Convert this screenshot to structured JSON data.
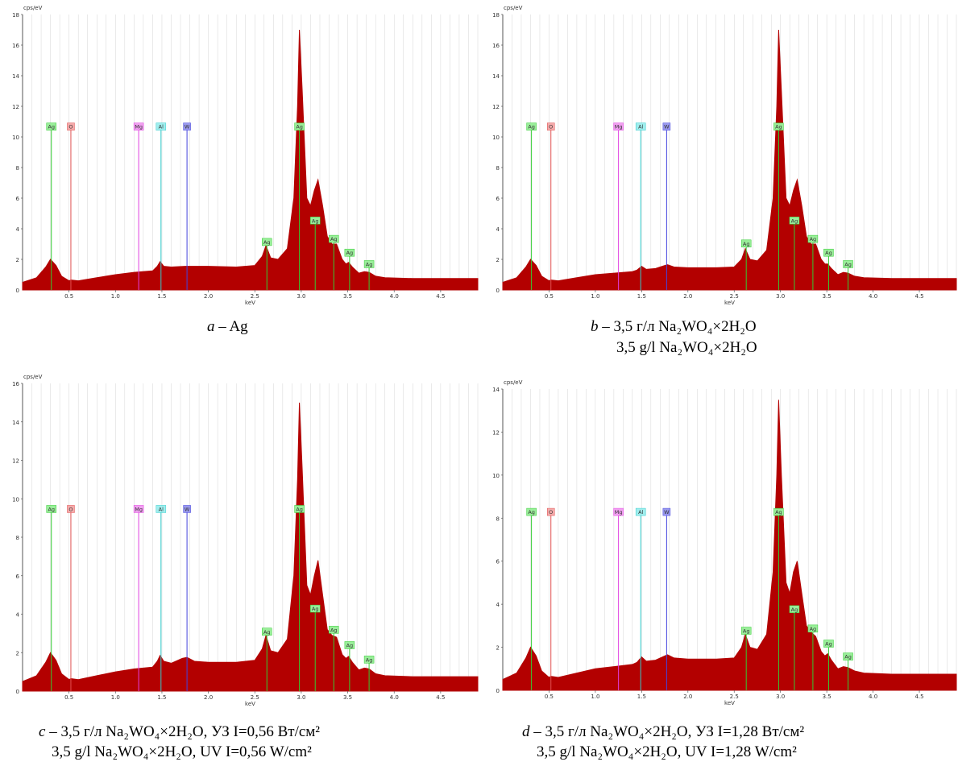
{
  "colors": {
    "fill": "#b30000",
    "grid": "#d6d6d6",
    "axis": "#555555"
  },
  "element_colors": {
    "Ag": "#33cc33",
    "O": "#e05050",
    "Mg": "#e040e0",
    "Al": "#33cccc",
    "W": "#4444dd"
  },
  "element_label_bg": {
    "Ag": "#99ee99",
    "O": "#f4aaaa",
    "Mg": "#f1a0f1",
    "Al": "#a0eeee",
    "W": "#9999ee"
  },
  "panels": [
    {
      "caption": {
        "prefix": "a",
        "line1": " – Ag",
        "line2": ""
      },
      "chart_data": {
        "type": "area",
        "ylabel": "cps/eV",
        "xlabel": "keV",
        "xlim": [
          0.0,
          4.9
        ],
        "ylim": [
          0,
          18
        ],
        "xticks": [
          0.5,
          1.0,
          1.5,
          2.0,
          2.5,
          3.0,
          3.5,
          4.0,
          4.5
        ],
        "xtick_labels": [
          "0.5",
          "1.0",
          "1.5",
          "2.0",
          "2.5",
          "3.0",
          "3.5",
          "4.0",
          "4.5"
        ],
        "yticks": [
          2,
          4,
          6,
          8,
          10,
          12,
          14,
          16,
          18
        ],
        "ytick_labels": [
          "2",
          "4",
          "6",
          "8",
          "10",
          "12",
          "14",
          "16",
          "18"
        ],
        "y_zero_label": "0",
        "x": [
          0.0,
          0.15,
          0.25,
          0.3,
          0.36,
          0.42,
          0.5,
          0.52,
          0.6,
          0.8,
          1.0,
          1.2,
          1.4,
          1.45,
          1.48,
          1.52,
          1.6,
          1.75,
          1.78,
          1.85,
          2.0,
          2.3,
          2.5,
          2.58,
          2.62,
          2.67,
          2.75,
          2.85,
          2.92,
          2.96,
          2.98,
          3.01,
          3.06,
          3.1,
          3.14,
          3.18,
          3.23,
          3.28,
          3.33,
          3.38,
          3.44,
          3.48,
          3.51,
          3.55,
          3.62,
          3.68,
          3.73,
          3.8,
          3.9,
          4.2,
          4.9
        ],
        "y": [
          0.5,
          0.8,
          1.5,
          2.0,
          1.6,
          0.9,
          0.6,
          0.65,
          0.6,
          0.8,
          1.0,
          1.15,
          1.25,
          1.55,
          1.85,
          1.55,
          1.5,
          1.55,
          1.55,
          1.55,
          1.55,
          1.5,
          1.6,
          2.2,
          2.9,
          2.1,
          2.0,
          2.7,
          6.0,
          12.0,
          17.0,
          13.0,
          6.0,
          5.5,
          6.5,
          7.2,
          5.5,
          3.5,
          3.0,
          3.0,
          2.0,
          1.7,
          1.8,
          1.5,
          1.1,
          1.2,
          1.15,
          0.9,
          0.8,
          0.75,
          0.75
        ]
      },
      "peaks": [
        {
          "el": "Ag",
          "x": 0.31,
          "tall": true
        },
        {
          "el": "O",
          "x": 0.52,
          "tall": true
        },
        {
          "el": "Mg",
          "x": 1.25,
          "tall": true
        },
        {
          "el": "Al",
          "x": 1.49,
          "tall": true
        },
        {
          "el": "W",
          "x": 1.77,
          "tall": true
        },
        {
          "el": "Ag",
          "x": 2.63,
          "tall": false,
          "label_y": 2.9
        },
        {
          "el": "Ag",
          "x": 2.98,
          "tall": true
        },
        {
          "el": "Ag",
          "x": 3.15,
          "tall": false,
          "label_y": 4.3
        },
        {
          "el": "Ag",
          "x": 3.35,
          "tall": false,
          "label_y": 3.1
        },
        {
          "el": "Ag",
          "x": 3.52,
          "tall": false,
          "label_y": 2.2
        },
        {
          "el": "Ag",
          "x": 3.73,
          "tall": false,
          "label_y": 1.45
        }
      ]
    },
    {
      "caption": {
        "prefix": "b",
        "line1": " – 3,5 г/л Na₂WO₄×2H₂O",
        "line2": "3,5 g/l Na₂WO₄×2H₂O"
      },
      "chart_data": {
        "type": "area",
        "ylabel": "cps/eV",
        "xlabel": "keV",
        "xlim": [
          0.0,
          4.9
        ],
        "ylim": [
          0,
          18
        ],
        "xticks": [
          0.5,
          1.0,
          1.5,
          2.0,
          2.5,
          3.0,
          3.5,
          4.0,
          4.5
        ],
        "xtick_labels": [
          "0.5",
          "1.0",
          "1.5",
          "2.0",
          "2.5",
          "3.0",
          "3.5",
          "4.0",
          "4.5"
        ],
        "yticks": [
          2,
          4,
          6,
          8,
          10,
          12,
          14,
          16,
          18
        ],
        "ytick_labels": [
          "2",
          "4",
          "6",
          "8",
          "10",
          "12",
          "14",
          "16",
          "18"
        ],
        "y_zero_label": "0",
        "x": [
          0.0,
          0.15,
          0.25,
          0.3,
          0.36,
          0.42,
          0.5,
          0.52,
          0.6,
          0.8,
          1.0,
          1.2,
          1.4,
          1.45,
          1.5,
          1.55,
          1.65,
          1.75,
          1.78,
          1.85,
          2.0,
          2.3,
          2.5,
          2.58,
          2.62,
          2.67,
          2.75,
          2.85,
          2.92,
          2.96,
          2.98,
          3.01,
          3.06,
          3.1,
          3.14,
          3.18,
          3.23,
          3.28,
          3.33,
          3.38,
          3.44,
          3.48,
          3.51,
          3.55,
          3.62,
          3.68,
          3.73,
          3.8,
          3.9,
          4.2,
          4.9
        ],
        "y": [
          0.5,
          0.8,
          1.5,
          2.0,
          1.6,
          0.9,
          0.6,
          0.65,
          0.6,
          0.8,
          1.0,
          1.1,
          1.2,
          1.3,
          1.55,
          1.35,
          1.4,
          1.6,
          1.65,
          1.5,
          1.45,
          1.45,
          1.5,
          2.0,
          2.7,
          2.0,
          1.9,
          2.6,
          6.0,
          12.0,
          17.0,
          13.0,
          6.0,
          5.5,
          6.5,
          7.2,
          5.5,
          3.5,
          3.0,
          3.0,
          2.0,
          1.7,
          1.7,
          1.4,
          1.0,
          1.15,
          1.1,
          0.9,
          0.8,
          0.75,
          0.75
        ]
      },
      "peaks": [
        {
          "el": "Ag",
          "x": 0.31,
          "tall": true
        },
        {
          "el": "O",
          "x": 0.52,
          "tall": true
        },
        {
          "el": "Mg",
          "x": 1.25,
          "tall": true
        },
        {
          "el": "Al",
          "x": 1.49,
          "tall": true
        },
        {
          "el": "W",
          "x": 1.77,
          "tall": true
        },
        {
          "el": "Ag",
          "x": 2.63,
          "tall": false,
          "label_y": 2.8
        },
        {
          "el": "Ag",
          "x": 2.98,
          "tall": true
        },
        {
          "el": "Ag",
          "x": 3.15,
          "tall": false,
          "label_y": 4.3
        },
        {
          "el": "Ag",
          "x": 3.35,
          "tall": false,
          "label_y": 3.1
        },
        {
          "el": "Ag",
          "x": 3.52,
          "tall": false,
          "label_y": 2.2
        },
        {
          "el": "Ag",
          "x": 3.73,
          "tall": false,
          "label_y": 1.45
        }
      ]
    },
    {
      "caption": {
        "prefix": "c",
        "line1": " – 3,5 г/л Na₂WO₄×2H₂O, УЗ I=0,56 Вт/см²",
        "line2": "3,5 g/l Na₂WO₄×2H₂O, UV I=0,56 W/cm²"
      },
      "chart_data": {
        "type": "area",
        "ylabel": "cps/eV",
        "xlabel": "keV",
        "xlim": [
          0.0,
          4.9
        ],
        "ylim": [
          0,
          16
        ],
        "xticks": [
          0.5,
          1.0,
          1.5,
          2.0,
          2.5,
          3.0,
          3.5,
          4.0,
          4.5
        ],
        "xtick_labels": [
          "0.5",
          "1.0",
          "1.5",
          "2.0",
          "2.5",
          "3.0",
          "3.5",
          "4.0",
          "4.5"
        ],
        "yticks": [
          2,
          4,
          6,
          8,
          10,
          12,
          14,
          16
        ],
        "ytick_labels": [
          "2",
          "4",
          "6",
          "8",
          "10",
          "12",
          "14",
          "16"
        ],
        "y_zero_label": "0",
        "x": [
          0.0,
          0.15,
          0.25,
          0.3,
          0.36,
          0.42,
          0.5,
          0.52,
          0.6,
          0.8,
          1.0,
          1.2,
          1.4,
          1.45,
          1.48,
          1.52,
          1.6,
          1.72,
          1.77,
          1.85,
          2.0,
          2.3,
          2.5,
          2.58,
          2.62,
          2.67,
          2.75,
          2.85,
          2.92,
          2.96,
          2.98,
          3.01,
          3.06,
          3.1,
          3.14,
          3.18,
          3.23,
          3.28,
          3.33,
          3.38,
          3.44,
          3.48,
          3.51,
          3.55,
          3.62,
          3.68,
          3.73,
          3.8,
          3.9,
          4.2,
          4.9
        ],
        "y": [
          0.5,
          0.8,
          1.5,
          2.0,
          1.6,
          0.9,
          0.6,
          0.65,
          0.6,
          0.8,
          1.0,
          1.15,
          1.25,
          1.55,
          1.85,
          1.55,
          1.45,
          1.7,
          1.75,
          1.55,
          1.5,
          1.5,
          1.6,
          2.2,
          2.9,
          2.1,
          2.0,
          2.7,
          6.0,
          11.0,
          15.0,
          11.5,
          5.5,
          5.0,
          6.0,
          6.8,
          5.0,
          3.2,
          2.9,
          2.8,
          1.9,
          1.7,
          1.8,
          1.5,
          1.1,
          1.2,
          1.15,
          0.9,
          0.8,
          0.75,
          0.75
        ]
      },
      "peaks": [
        {
          "el": "Ag",
          "x": 0.31,
          "tall": true
        },
        {
          "el": "O",
          "x": 0.52,
          "tall": true
        },
        {
          "el": "Mg",
          "x": 1.25,
          "tall": true
        },
        {
          "el": "Al",
          "x": 1.49,
          "tall": true
        },
        {
          "el": "W",
          "x": 1.77,
          "tall": true
        },
        {
          "el": "Ag",
          "x": 2.63,
          "tall": false,
          "label_y": 2.9
        },
        {
          "el": "Ag",
          "x": 2.98,
          "tall": true
        },
        {
          "el": "Ag",
          "x": 3.15,
          "tall": false,
          "label_y": 4.1
        },
        {
          "el": "Ag",
          "x": 3.35,
          "tall": false,
          "label_y": 3.0
        },
        {
          "el": "Ag",
          "x": 3.52,
          "tall": false,
          "label_y": 2.2
        },
        {
          "el": "Ag",
          "x": 3.73,
          "tall": false,
          "label_y": 1.45
        }
      ]
    },
    {
      "caption": {
        "prefix": "d",
        "line1": " – 3,5 г/л Na₂WO₄×2H₂O, УЗ I=1,28 Вт/см²",
        "line2": "3,5 g/l Na₂WO₄×2H₂O, UV I=1,28 W/cm²"
      },
      "chart_data": {
        "type": "area",
        "ylabel": "cps/eV",
        "xlabel": "keV",
        "xlim": [
          0.0,
          4.9
        ],
        "ylim": [
          0,
          14
        ],
        "xticks": [
          0.5,
          1.0,
          1.5,
          2.0,
          2.5,
          3.0,
          3.5,
          4.0,
          4.5
        ],
        "xtick_labels": [
          "0.5",
          "1.0",
          "1.5",
          "2.0",
          "2.5",
          "3.0",
          "3.5",
          "4.0",
          "4.5"
        ],
        "yticks": [
          2,
          4,
          6,
          8,
          10,
          12,
          14
        ],
        "ytick_labels": [
          "2",
          "4",
          "6",
          "8",
          "10",
          "12",
          "14"
        ],
        "y_zero_label": "0",
        "x": [
          0.0,
          0.15,
          0.25,
          0.3,
          0.36,
          0.42,
          0.5,
          0.52,
          0.6,
          0.8,
          1.0,
          1.2,
          1.4,
          1.45,
          1.5,
          1.55,
          1.65,
          1.75,
          1.78,
          1.85,
          2.0,
          2.3,
          2.5,
          2.58,
          2.62,
          2.67,
          2.75,
          2.85,
          2.92,
          2.96,
          2.98,
          3.01,
          3.06,
          3.1,
          3.14,
          3.18,
          3.23,
          3.28,
          3.33,
          3.38,
          3.44,
          3.48,
          3.51,
          3.55,
          3.62,
          3.68,
          3.73,
          3.8,
          3.9,
          4.2,
          4.9
        ],
        "y": [
          0.5,
          0.8,
          1.5,
          2.0,
          1.6,
          0.9,
          0.6,
          0.65,
          0.6,
          0.8,
          1.0,
          1.1,
          1.2,
          1.3,
          1.55,
          1.35,
          1.4,
          1.6,
          1.65,
          1.5,
          1.45,
          1.45,
          1.5,
          2.0,
          2.6,
          2.0,
          1.9,
          2.6,
          5.5,
          10.0,
          13.5,
          10.0,
          5.0,
          4.5,
          5.5,
          6.0,
          4.5,
          3.0,
          2.7,
          2.5,
          1.8,
          1.6,
          1.7,
          1.4,
          1.0,
          1.1,
          1.05,
          0.9,
          0.8,
          0.75,
          0.75
        ]
      },
      "peaks": [
        {
          "el": "Ag",
          "x": 0.31,
          "tall": true
        },
        {
          "el": "O",
          "x": 0.52,
          "tall": true
        },
        {
          "el": "Mg",
          "x": 1.25,
          "tall": true
        },
        {
          "el": "Al",
          "x": 1.49,
          "tall": true
        },
        {
          "el": "W",
          "x": 1.77,
          "tall": true
        },
        {
          "el": "Ag",
          "x": 2.63,
          "tall": false,
          "label_y": 2.6
        },
        {
          "el": "Ag",
          "x": 2.98,
          "tall": true
        },
        {
          "el": "Ag",
          "x": 3.15,
          "tall": false,
          "label_y": 3.6
        },
        {
          "el": "Ag",
          "x": 3.35,
          "tall": false,
          "label_y": 2.7
        },
        {
          "el": "Ag",
          "x": 3.52,
          "tall": false,
          "label_y": 2.0
        },
        {
          "el": "Ag",
          "x": 3.73,
          "tall": false,
          "label_y": 1.4
        }
      ]
    }
  ]
}
